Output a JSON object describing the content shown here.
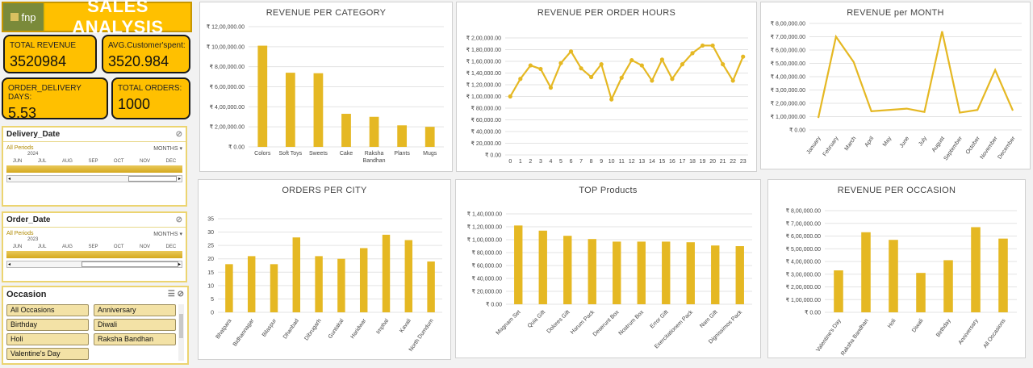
{
  "header": {
    "logo_text": "fnp",
    "title": "SALES ANALYSIS"
  },
  "kpis": {
    "total_revenue": {
      "label": "TOTAL REVENUE",
      "value": "3520984"
    },
    "avg_spent": {
      "label": "AVG.Customer'spent:",
      "value": "3520.984"
    },
    "delivery_days": {
      "label": "ORDER_DELIVERY DAYS:",
      "value": "5.53"
    },
    "total_orders": {
      "label": "TOTAL ORDERS:",
      "value": "1000"
    }
  },
  "slicers": {
    "delivery": {
      "title": "Delivery_Date",
      "period": "All Periods",
      "unit": "MONTHS",
      "year": "2024",
      "months": [
        "JUN",
        "JUL",
        "AUG",
        "SEP",
        "OCT",
        "NOV",
        "DEC"
      ]
    },
    "order": {
      "title": "Order_Date",
      "period": "All Periods",
      "unit": "MONTHS",
      "year": "2023",
      "months": [
        "JUN",
        "JUL",
        "AUG",
        "SEP",
        "OCT",
        "NOV",
        "DEC"
      ]
    }
  },
  "occasion": {
    "title": "Occasion",
    "items": [
      "All Occasions",
      "Anniversary",
      "Birthday",
      "Diwali",
      "Holi",
      "Raksha Bandhan",
      "Valentine's Day"
    ]
  },
  "colors": {
    "accent": "#ffc000",
    "bar": "#e5b823"
  },
  "chart_data": [
    {
      "type": "bar",
      "title": "REVENUE PER CATEGORY",
      "categories": [
        "Colors",
        "Soft Toys",
        "Sweets",
        "Cake",
        "Raksha Bandhan",
        "Plants",
        "Mugs"
      ],
      "values": [
        1010000,
        740000,
        735000,
        330000,
        300000,
        215000,
        200000
      ],
      "ylim": [
        0,
        1200000
      ],
      "yticks": [
        "₹ 0.00",
        "₹ 2,00,000.00",
        "₹ 4,00,000.00",
        "₹ 6,00,000.00",
        "₹ 8,00,000.00",
        "₹ 10,00,000.00",
        "₹ 12,00,000.00"
      ]
    },
    {
      "type": "line",
      "title": "REVENUE PER ORDER HOURS",
      "categories": [
        "0",
        "1",
        "2",
        "3",
        "4",
        "5",
        "6",
        "7",
        "8",
        "9",
        "10",
        "11",
        "12",
        "13",
        "14",
        "15",
        "16",
        "17",
        "18",
        "19",
        "20",
        "21",
        "22",
        "23"
      ],
      "values": [
        100000,
        130000,
        153000,
        147000,
        115000,
        157000,
        177000,
        148000,
        133000,
        155000,
        95000,
        132000,
        162000,
        153000,
        127000,
        163000,
        130000,
        155000,
        174000,
        187000,
        187000,
        155000,
        127000,
        168000
      ],
      "ylim": [
        0,
        200000
      ],
      "yticks": [
        "₹ 0.00",
        "₹ 20,000.00",
        "₹ 40,000.00",
        "₹ 60,000.00",
        "₹ 80,000.00",
        "₹ 1,00,000.00",
        "₹ 1,20,000.00",
        "₹ 1,40,000.00",
        "₹ 1,60,000.00",
        "₹ 1,80,000.00",
        "₹ 2,00,000.00"
      ]
    },
    {
      "type": "line",
      "title": "REVENUE per MONTH",
      "categories": [
        "January",
        "February",
        "March",
        "April",
        "May",
        "June",
        "July",
        "August",
        "September",
        "October",
        "November",
        "December"
      ],
      "values": [
        90000,
        700000,
        510000,
        140000,
        150000,
        160000,
        135000,
        740000,
        130000,
        150000,
        450000,
        145000
      ],
      "ylim": [
        0,
        800000
      ],
      "yticks": [
        "₹ 0.00",
        "₹ 1,00,000.00",
        "₹ 2,00,000.00",
        "₹ 3,00,000.00",
        "₹ 4,00,000.00",
        "₹ 5,00,000.00",
        "₹ 6,00,000.00",
        "₹ 7,00,000.00",
        "₹ 8,00,000.00"
      ]
    },
    {
      "type": "bar",
      "title": "ORDERS PER CITY",
      "categories": [
        "Bhatpara",
        "Bidhannagar",
        "Bilaspur",
        "Dhanbad",
        "Dibrugarh",
        "Guntakal",
        "Haridwar",
        "Imphal",
        "Kavali",
        "North Dumdum"
      ],
      "values": [
        18,
        21,
        18,
        28,
        21,
        20,
        24,
        29,
        27,
        19
      ],
      "ylim": [
        0,
        35
      ],
      "yticks": [
        "0",
        "5",
        "10",
        "15",
        "20",
        "25",
        "30",
        "35"
      ]
    },
    {
      "type": "bar",
      "title": "TOP Products",
      "categories": [
        "Magnam Set",
        "Quia Gift",
        "Dolores Gift",
        "Harum Pack",
        "Deserunt Box",
        "Nostrum Box",
        "Error Gift",
        "Exercitationem Pack",
        "Nam Gift",
        "Dignissimos Pack"
      ],
      "values": [
        122000,
        114000,
        106000,
        101000,
        97000,
        97000,
        97000,
        96000,
        91000,
        90000
      ],
      "ylim": [
        0,
        140000
      ],
      "yticks": [
        "₹ 0.00",
        "₹ 20,000.00",
        "₹ 40,000.00",
        "₹ 60,000.00",
        "₹ 80,000.00",
        "₹ 1,00,000.00",
        "₹ 1,20,000.00",
        "₹ 1,40,000.00"
      ]
    },
    {
      "type": "bar",
      "title": "REVENUE PER OCCASION",
      "categories": [
        "Valentine's Day",
        "Raksha Bandhan",
        "Holi",
        "Diwali",
        "Birthday",
        "Anniversary",
        "All Occasions"
      ],
      "values": [
        330000,
        630000,
        570000,
        310000,
        410000,
        670000,
        580000
      ],
      "ylim": [
        0,
        800000
      ],
      "yticks": [
        "₹ 0.00",
        "₹ 1,00,000.00",
        "₹ 2,00,000.00",
        "₹ 3,00,000.00",
        "₹ 4,00,000.00",
        "₹ 5,00,000.00",
        "₹ 6,00,000.00",
        "₹ 7,00,000.00",
        "₹ 8,00,000.00"
      ]
    }
  ]
}
